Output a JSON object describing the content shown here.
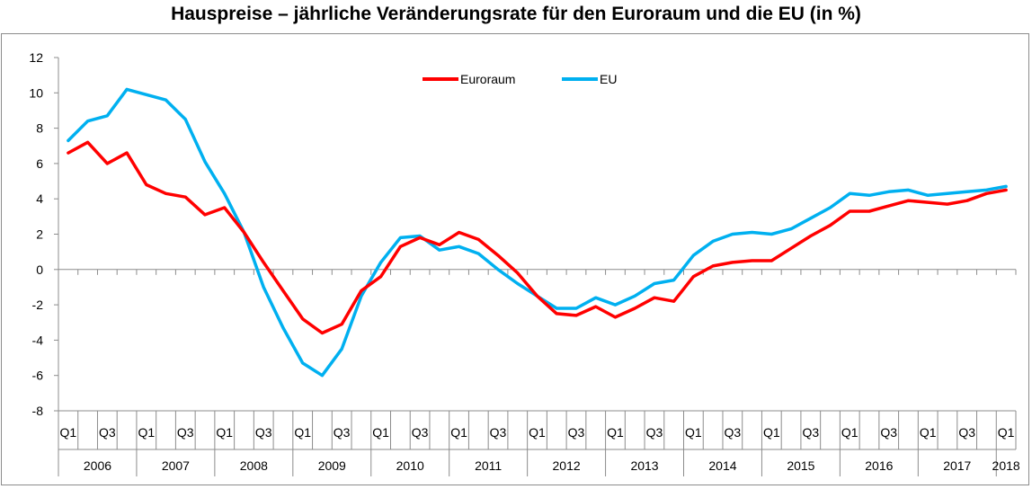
{
  "chart_data": {
    "type": "line",
    "title": "Hauspreise – jährliche Veränderungsrate für den Euroraum und die EU (in %)",
    "xlabel": "",
    "ylabel": "",
    "ylim": [
      -8,
      12
    ],
    "yticks": [
      "12",
      "10",
      "8",
      "6",
      "4",
      "2",
      "0",
      "-2",
      "-4",
      "-6",
      "-8"
    ],
    "grid": false,
    "legend_position": "top-center",
    "quarter_labels": [
      "Q1",
      "Q3",
      "Q1",
      "Q3",
      "Q1",
      "Q3",
      "Q1",
      "Q3",
      "Q1",
      "Q3",
      "Q1",
      "Q3",
      "Q1",
      "Q3",
      "Q1",
      "Q3",
      "Q1",
      "Q3",
      "Q1",
      "Q3",
      "Q1",
      "Q3",
      "Q1",
      "Q3",
      "Q1"
    ],
    "years": [
      "2006",
      "2007",
      "2008",
      "2009",
      "2010",
      "2011",
      "2012",
      "2013",
      "2014",
      "2015",
      "2016",
      "2017",
      "2018"
    ],
    "series": [
      {
        "name": "Euroraum",
        "color": "#ff0000",
        "values": [
          6.6,
          7.2,
          6.0,
          6.6,
          4.8,
          4.3,
          4.1,
          3.1,
          3.5,
          2.1,
          0.4,
          -1.2,
          -2.8,
          -3.6,
          -3.1,
          -1.2,
          -0.4,
          1.3,
          1.8,
          1.4,
          2.1,
          1.7,
          0.8,
          -0.2,
          -1.5,
          -2.5,
          -2.6,
          -2.1,
          -2.7,
          -2.2,
          -1.6,
          -1.8,
          -0.4,
          0.2,
          0.4,
          0.5,
          0.5,
          1.2,
          1.9,
          2.5,
          3.3,
          3.3,
          3.6,
          3.9,
          3.8,
          3.7,
          3.9,
          4.3,
          4.5
        ]
      },
      {
        "name": "EU",
        "color": "#00b0f0",
        "values": [
          7.3,
          8.4,
          8.7,
          10.2,
          9.9,
          9.6,
          8.5,
          6.1,
          4.3,
          2.1,
          -1.0,
          -3.3,
          -5.3,
          -6.0,
          -4.5,
          -1.5,
          0.4,
          1.8,
          1.9,
          1.1,
          1.3,
          0.9,
          0.0,
          -0.8,
          -1.5,
          -2.2,
          -2.2,
          -1.6,
          -2.0,
          -1.5,
          -0.8,
          -0.6,
          0.8,
          1.6,
          2.0,
          2.1,
          2.0,
          2.3,
          2.9,
          3.5,
          4.3,
          4.2,
          4.4,
          4.5,
          4.2,
          4.3,
          4.4,
          4.5,
          4.7
        ]
      }
    ]
  }
}
